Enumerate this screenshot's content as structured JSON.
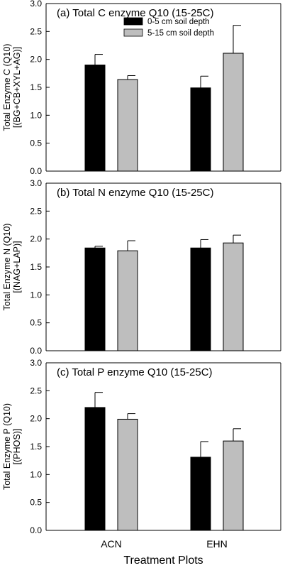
{
  "chart_data": [
    {
      "type": "bar",
      "title": "(a) Total C enzyme Q10 (15-25C)",
      "ylabel": [
        "Total Enzyme C (Q10)",
        "[(BG+CB+XYL+AG)]"
      ],
      "categories": [
        "ACN",
        "EHN"
      ],
      "ylim": [
        0,
        3
      ],
      "yticks": [
        "0.0",
        "0.5",
        "1.0",
        "1.5",
        "2.0",
        "2.5",
        "3.0"
      ],
      "series": [
        {
          "name": "0-5 cm soil depth",
          "color": "#000000",
          "values": [
            1.9,
            1.49
          ],
          "errors": [
            0.19,
            0.21
          ]
        },
        {
          "name": "5-15 cm soil depth",
          "color": "#bebebe",
          "values": [
            1.64,
            2.11
          ],
          "errors": [
            0.07,
            0.5
          ]
        }
      ],
      "legend": "top-center"
    },
    {
      "type": "bar",
      "title": "(b) Total N enzyme Q10 (15-25C)",
      "ylabel": [
        "Total Enzyme N (Q10)",
        "[(NAG+LAP)]"
      ],
      "categories": [
        "ACN",
        "EHN"
      ],
      "ylim": [
        0,
        3
      ],
      "yticks": [
        "0.0",
        "0.5",
        "1.0",
        "1.5",
        "2.0",
        "2.5",
        "3.0"
      ],
      "series": [
        {
          "color": "#000000",
          "values": [
            1.84,
            1.84
          ],
          "errors": [
            0.03,
            0.15
          ]
        },
        {
          "color": "#bebebe",
          "values": [
            1.79,
            1.93
          ],
          "errors": [
            0.18,
            0.14
          ]
        }
      ]
    },
    {
      "type": "bar",
      "title": "(c) Total P enzyme Q10 (15-25C)",
      "ylabel": [
        "Total Enzyme P (Q10)",
        "[(PHOS)]"
      ],
      "categories": [
        "ACN",
        "EHN"
      ],
      "ylim": [
        0,
        3
      ],
      "yticks": [
        "0.0",
        "0.5",
        "1.0",
        "1.5",
        "2.0",
        "2.5",
        "3.0"
      ],
      "series": [
        {
          "color": "#000000",
          "values": [
            2.2,
            1.31
          ],
          "errors": [
            0.27,
            0.28
          ]
        },
        {
          "color": "#bebebe",
          "values": [
            1.99,
            1.6
          ],
          "errors": [
            0.1,
            0.22
          ]
        }
      ],
      "xlabel": "Treatment Plots"
    }
  ]
}
